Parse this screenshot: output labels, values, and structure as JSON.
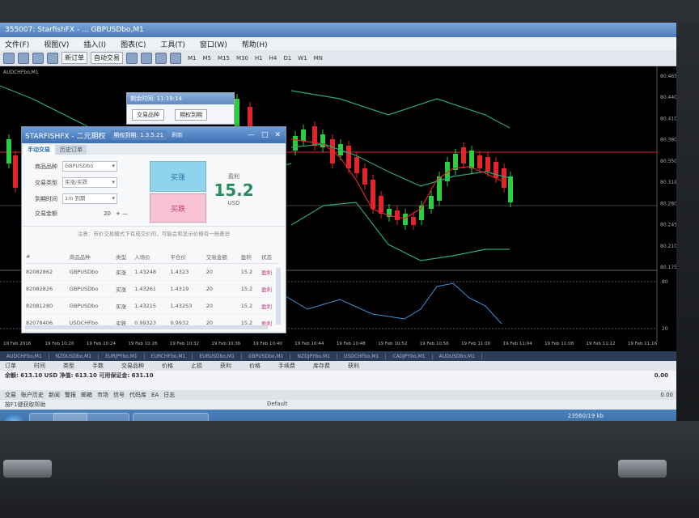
{
  "app": {
    "title": "355007: StarfishFX - ... GBPUSDbo,M1"
  },
  "menu": [
    "文件(F)",
    "视图(V)",
    "插入(I)",
    "图表(C)",
    "工具(T)",
    "窗口(W)",
    "帮助(H)"
  ],
  "toolbar": {
    "new_order": "新订单",
    "auto_trade": "自动交易",
    "timeframes": [
      "M1",
      "M5",
      "M15",
      "M30",
      "H1",
      "H4",
      "D1",
      "W1",
      "MN"
    ]
  },
  "timer": {
    "title": "剩余时间: 11:19:14",
    "tab1": "交易品种",
    "tab2": "期权到期"
  },
  "window": {
    "title": "STARFISHFX - 二元期权",
    "license": "期权到期: 1.3.5.21",
    "refresh": "刷新"
  },
  "tabs": [
    "手动交易",
    "历史订单"
  ],
  "form": {
    "symbol_label": "商品品种",
    "symbol_value": "GBPUSDbo",
    "type_label": "交易类型",
    "type_value": "买涨/买跌",
    "expiry_label": "到期时间",
    "expiry_value": "1m 到期",
    "amount_label": "交易金额",
    "amount_value": "20"
  },
  "buttons": {
    "up": "买涨",
    "down": "买跌"
  },
  "payout": {
    "label": "盈利",
    "value": "15.2",
    "unit": "USD"
  },
  "notice": "注意：市价交易模式下有成交价的，可能会和显示价格有一些差异",
  "table": {
    "headers": [
      "#",
      "商品品种",
      "类型",
      "入场价",
      "平仓价",
      "交易金额",
      "盈利",
      "状态"
    ],
    "rows": [
      [
        "82082862",
        "GBPUSDbo",
        "买涨",
        "1.43248",
        "1.4323",
        "20",
        "15.2",
        "盈利"
      ],
      [
        "82082826",
        "GBPUSDbo",
        "买涨",
        "1.43261",
        "1.4319",
        "20",
        "15.2",
        "盈利"
      ],
      [
        "82081280",
        "GBPUSDbo",
        "买涨",
        "1.43215",
        "1.43253",
        "20",
        "15.2",
        "盈利"
      ],
      [
        "82078406",
        "USDCHFbo",
        "买跌",
        "0.99323",
        "0.9932",
        "20",
        "15.2",
        "盈利"
      ]
    ]
  },
  "chart": {
    "symbol_label": "AUDCHFbo,M1",
    "times": [
      "19 Feb 2016",
      "19 Feb 10:20",
      "19 Feb 10:24",
      "19 Feb 10:28",
      "19 Feb 10:32",
      "19 Feb 10:36",
      "19 Feb 10:40",
      "19 Feb 10:44",
      "19 Feb 10:48",
      "19 Feb 10:52",
      "19 Feb 10:56",
      "19 Feb 11:00",
      "19 Feb 11:04",
      "19 Feb 11:08",
      "19 Feb 11:12",
      "19 Feb 11:16"
    ],
    "prices": [
      "80.465",
      "80.440",
      "80.410",
      "80.380",
      "80.350",
      "80.319",
      "80.280",
      "80.245",
      "80.210",
      "80.175"
    ],
    "osc_labels": [
      "80",
      "20"
    ],
    "colors": {
      "bull": "#2ecc40",
      "bear": "#e0262b",
      "band": "#2aa67a"
    }
  },
  "symbol_tabs": [
    "AUDCHFbo,M1",
    "NZDUSDbo,M1",
    "EURJPYbo,M1",
    "EURCHFbo,M1",
    "EURUSDbo,M1",
    "GBPUSDbo,M1",
    "NZDJPYbo,M1",
    "USDCHFbo,M1",
    "CADJPYbo,M1",
    "AUDUSDbo,M1"
  ],
  "terminal": {
    "headers": [
      "订单",
      "时间",
      "类型",
      "手数",
      "交易品种",
      "价格",
      "止损",
      "获利",
      "价格",
      "手续费",
      "库存费",
      "获利"
    ],
    "balance": "余额: 613.10 USD  净值: 613.10  可用保证金: 631.10",
    "tabs": [
      "交易",
      "账户历史",
      "新闻",
      "警报",
      "邮箱",
      "市场",
      "信号",
      "代码库",
      "EA",
      "日志"
    ]
  },
  "status": {
    "left": "按F1键获取帮助",
    "center": "Default",
    "disk": "23560/19 kb"
  },
  "profit_figures": [
    "0.00",
    "0.00"
  ]
}
